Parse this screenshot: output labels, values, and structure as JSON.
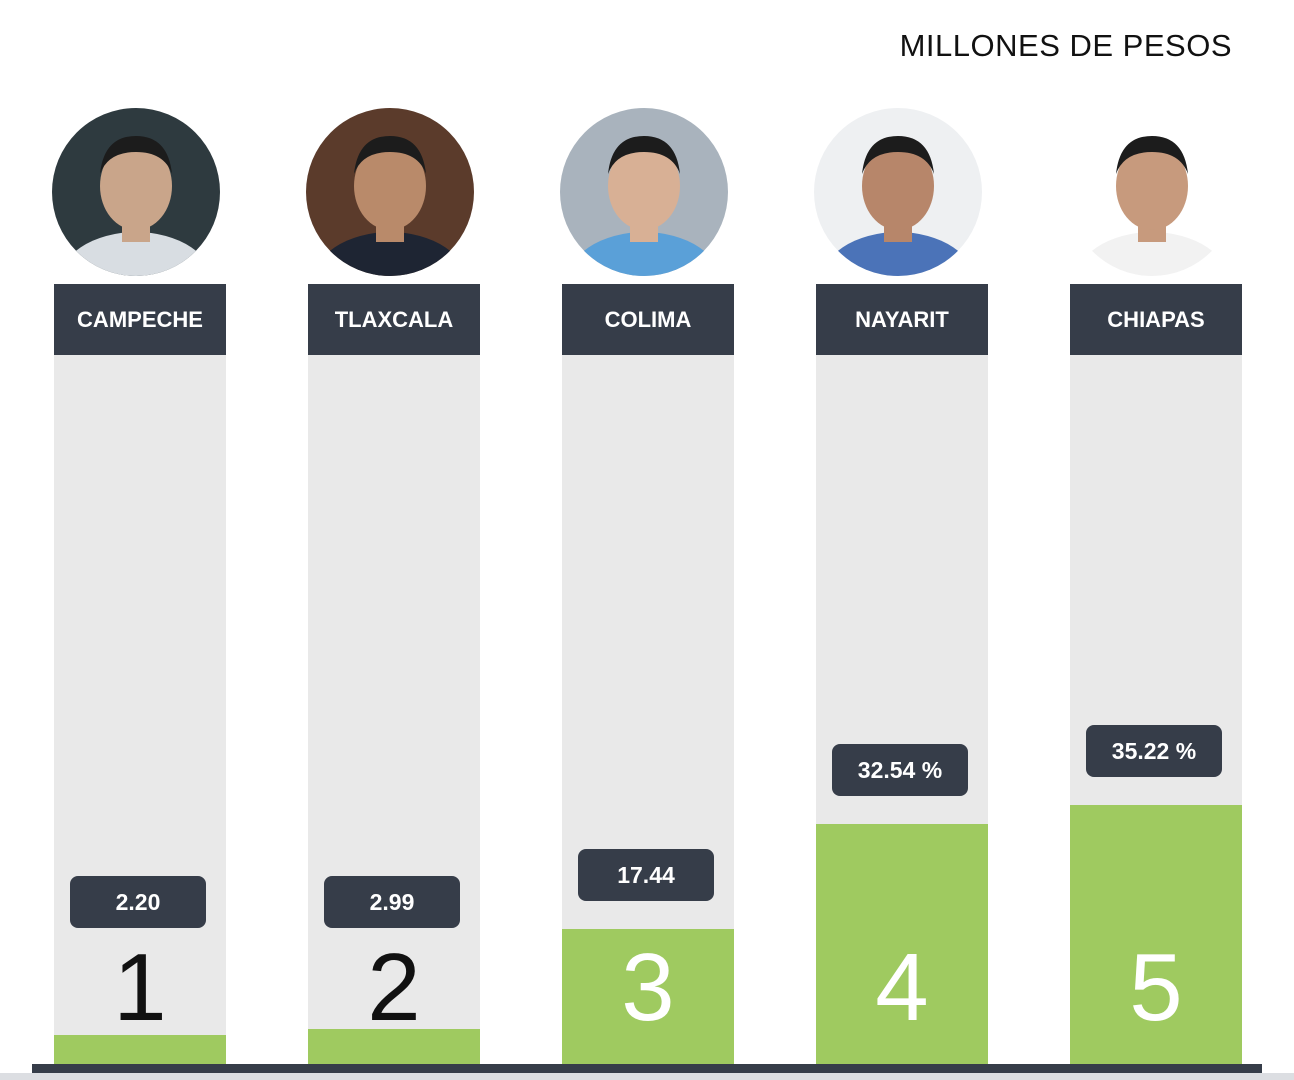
{
  "header": {
    "title": "MILLONES DE PESOS"
  },
  "colors": {
    "header_bg": "#363d49",
    "column_bg": "#e9e9e9",
    "bar_fill": "#9fca60"
  },
  "chart_data": {
    "type": "bar",
    "categories": [
      "CAMPECHE",
      "TLAXCALA",
      "COLIMA",
      "NAYARIT",
      "CHIAPAS"
    ],
    "values": [
      2.2,
      2.99,
      17.44,
      32.54,
      35.22
    ],
    "value_labels": [
      "2.20",
      "2.99",
      "17.44",
      "32.54 %",
      "35.22 %"
    ],
    "ranks": [
      "1",
      "2",
      "3",
      "4",
      "5"
    ],
    "title": "MILLONES DE PESOS",
    "xlabel": "",
    "ylabel": "",
    "ylim": [
      0,
      100
    ],
    "grid": false,
    "legend": "none"
  }
}
